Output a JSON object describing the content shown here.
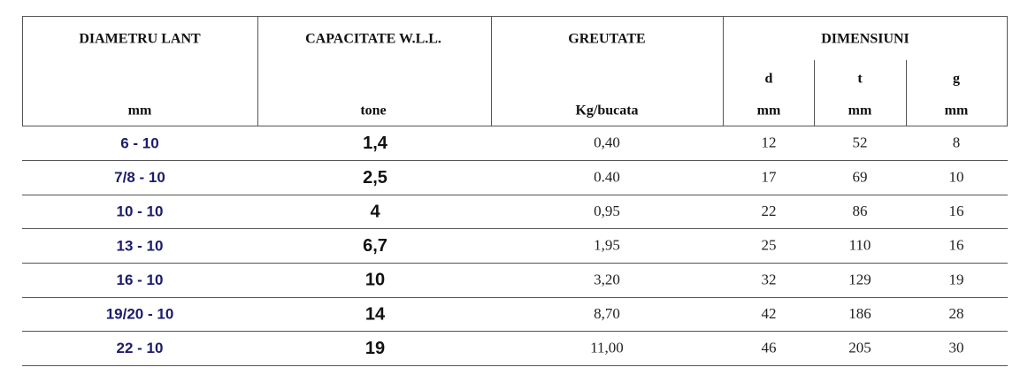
{
  "table": {
    "headers": [
      "DIAMETRU LANT",
      "CAPACITATE W.L.L.",
      "GREUTATE",
      "DIMENSIUNI"
    ],
    "units": [
      "mm",
      "tone",
      "Kg/bucata"
    ],
    "subheaders": [
      {
        "label": "d",
        "unit": "mm"
      },
      {
        "label": "t",
        "unit": "mm"
      },
      {
        "label": "g",
        "unit": "mm"
      }
    ],
    "rows": [
      [
        "6 - 10",
        "1,4",
        "0,40",
        "12",
        "52",
        "8"
      ],
      [
        "7/8 - 10",
        "2,5",
        "0.40",
        "17",
        "69",
        "10"
      ],
      [
        "10 - 10",
        "4",
        "0,95",
        "22",
        "86",
        "16"
      ],
      [
        "13 - 10",
        "6,7",
        "1,95",
        "25",
        "110",
        "16"
      ],
      [
        "16 - 10",
        "10",
        "3,20",
        "32",
        "129",
        "19"
      ],
      [
        "19/20 - 10",
        "14",
        "8,70",
        "42",
        "186",
        "28"
      ],
      [
        "22 - 10",
        "19",
        "11,00",
        "46",
        "205",
        "30"
      ]
    ]
  }
}
